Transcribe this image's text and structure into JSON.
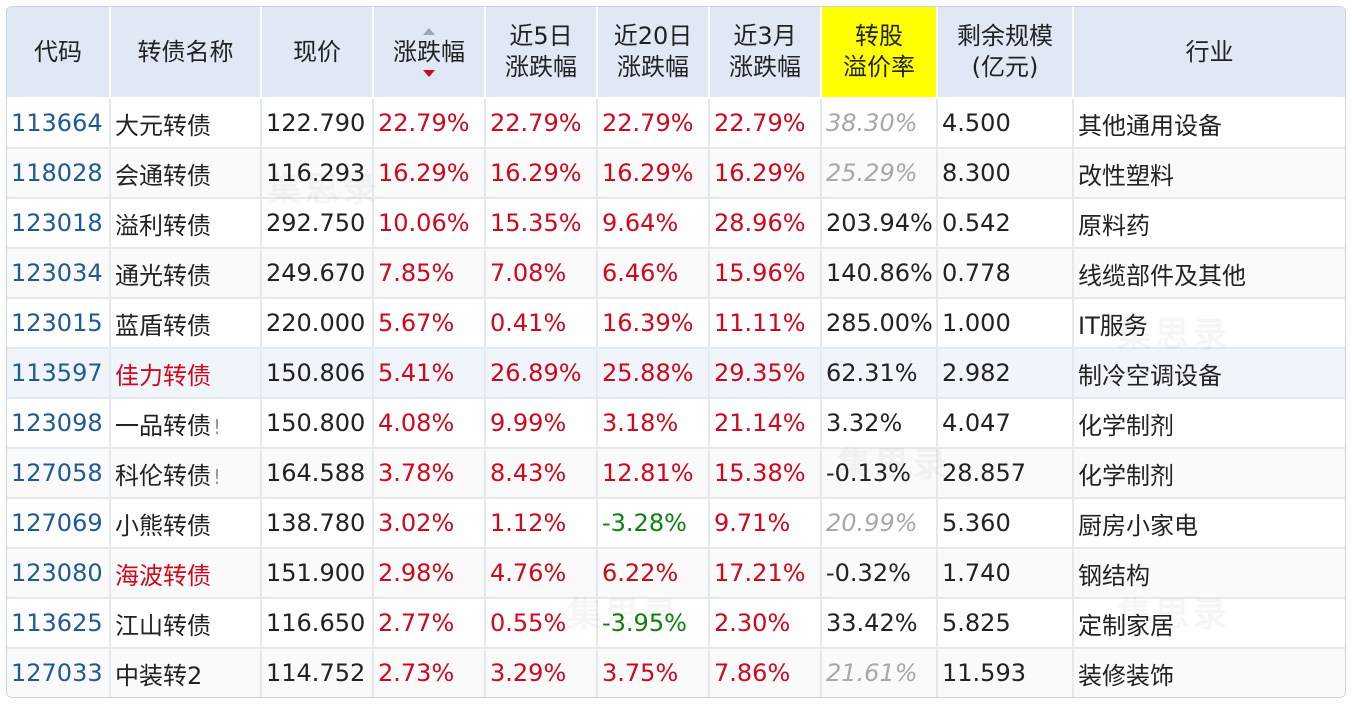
{
  "headers": {
    "code": "代码",
    "name": "转债名称",
    "price": "现价",
    "change": "涨跌幅",
    "change_5d_l1": "近5日",
    "change_5d_l2": "涨跌幅",
    "change_20d_l1": "近20日",
    "change_20d_l2": "涨跌幅",
    "change_3m_l1": "近3月",
    "change_3m_l2": "涨跌幅",
    "premium_l1": "转股",
    "premium_l2": "溢价率",
    "scale_l1": "剩余规模",
    "scale_l2": "(亿元)",
    "industry": "行业"
  },
  "colors": {
    "header_bg": "#dfe8f4",
    "highlight_header": "#ffff00",
    "code": "#1f5a96",
    "up": "#d3071c",
    "down": "#118011",
    "muted": "#a8a8a8"
  },
  "watermark": "集思录",
  "rows": [
    {
      "code": "113664",
      "name": "大元转债",
      "flag": "",
      "price": "122.790",
      "chg": "22.79%",
      "chg5": "22.79%",
      "chg20": "22.79%",
      "chg3m": "22.79%",
      "premium": "38.30%",
      "scale": "4.500",
      "industry": "其他通用设备"
    },
    {
      "code": "118028",
      "name": "会通转债",
      "flag": "",
      "price": "116.293",
      "chg": "16.29%",
      "chg5": "16.29%",
      "chg20": "16.29%",
      "chg3m": "16.29%",
      "premium": "25.29%",
      "scale": "8.300",
      "industry": "改性塑料"
    },
    {
      "code": "123018",
      "name": "溢利转债",
      "flag": "",
      "price": "292.750",
      "chg": "10.06%",
      "chg5": "15.35%",
      "chg20": "9.64%",
      "chg3m": "28.96%",
      "premium": "203.94%",
      "scale": "0.542",
      "industry": "原料药"
    },
    {
      "code": "123034",
      "name": "通光转债",
      "flag": "",
      "price": "249.670",
      "chg": "7.85%",
      "chg5": "7.08%",
      "chg20": "6.46%",
      "chg3m": "15.96%",
      "premium": "140.86%",
      "scale": "0.778",
      "industry": "线缆部件及其他"
    },
    {
      "code": "123015",
      "name": "蓝盾转债",
      "flag": "",
      "price": "220.000",
      "chg": "5.67%",
      "chg5": "0.41%",
      "chg20": "16.39%",
      "chg3m": "11.11%",
      "premium": "285.00%",
      "scale": "1.000",
      "industry": "IT服务"
    },
    {
      "code": "113597",
      "name": "佳力转债",
      "flag": "",
      "price": "150.806",
      "chg": "5.41%",
      "chg5": "26.89%",
      "chg20": "25.88%",
      "chg3m": "29.35%",
      "premium": "62.31%",
      "scale": "2.982",
      "industry": "制冷空调设备"
    },
    {
      "code": "123098",
      "name": "一品转债",
      "flag": "!",
      "price": "150.800",
      "chg": "4.08%",
      "chg5": "9.99%",
      "chg20": "3.18%",
      "chg3m": "21.14%",
      "premium": "3.32%",
      "scale": "4.047",
      "industry": "化学制剂"
    },
    {
      "code": "127058",
      "name": "科伦转债",
      "flag": "!",
      "price": "164.588",
      "chg": "3.78%",
      "chg5": "8.43%",
      "chg20": "12.81%",
      "chg3m": "15.38%",
      "premium": "-0.13%",
      "scale": "28.857",
      "industry": "化学制剂"
    },
    {
      "code": "127069",
      "name": "小熊转债",
      "flag": "",
      "price": "138.780",
      "chg": "3.02%",
      "chg5": "1.12%",
      "chg20": "-3.28%",
      "chg3m": "9.71%",
      "premium": "20.99%",
      "scale": "5.360",
      "industry": "厨房小家电"
    },
    {
      "code": "123080",
      "name": "海波转债",
      "flag": "",
      "price": "151.900",
      "chg": "2.98%",
      "chg5": "4.76%",
      "chg20": "6.22%",
      "chg3m": "17.21%",
      "premium": "-0.32%",
      "scale": "1.740",
      "industry": "钢结构"
    },
    {
      "code": "113625",
      "name": "江山转债",
      "flag": "",
      "price": "116.650",
      "chg": "2.77%",
      "chg5": "0.55%",
      "chg20": "-3.95%",
      "chg3m": "2.30%",
      "premium": "33.42%",
      "scale": "5.825",
      "industry": "定制家居"
    },
    {
      "code": "127033",
      "name": "中装转2",
      "flag": "",
      "price": "114.752",
      "chg": "2.73%",
      "chg5": "3.29%",
      "chg20": "3.75%",
      "chg3m": "7.86%",
      "premium": "21.61%",
      "scale": "11.593",
      "industry": "装修装饰"
    }
  ]
}
